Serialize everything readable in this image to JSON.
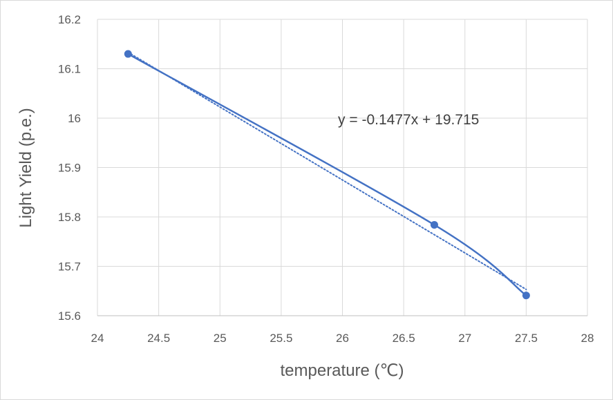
{
  "chart_data": {
    "type": "scatter",
    "title": "",
    "xlabel": "temperature (℃)",
    "ylabel": "Light Yield (p.e.)",
    "xlim": [
      24,
      28
    ],
    "ylim": [
      15.6,
      16.2
    ],
    "xticks": [
      24,
      24.5,
      25,
      25.5,
      26,
      26.5,
      27,
      27.5,
      28
    ],
    "xtick_labels": [
      "24",
      "24.5",
      "25",
      "25.5",
      "26",
      "26.5",
      "27",
      "27.5",
      "28"
    ],
    "yticks": [
      15.6,
      15.7,
      15.8,
      15.9,
      16.0,
      16.1,
      16.2
    ],
    "ytick_labels": [
      "15.6",
      "15.7",
      "15.8",
      "15.9",
      "16",
      "16.1",
      "16.2"
    ],
    "grid": true,
    "series": [
      {
        "name": "Light Yield",
        "style": "smooth-line-with-markers",
        "color": "#4472c4",
        "x": [
          24.25,
          26.75,
          27.5
        ],
        "y": [
          16.13,
          15.784,
          15.641
        ]
      }
    ],
    "trendline": {
      "type": "linear",
      "style": "dotted",
      "color": "#4472c4",
      "slope": -0.1477,
      "intercept": 19.715,
      "x_range": [
        24.25,
        27.5
      ],
      "equation_label": "y = -0.1477x + 19.715",
      "label_anchor": [
        26.54,
        16.0
      ]
    }
  }
}
